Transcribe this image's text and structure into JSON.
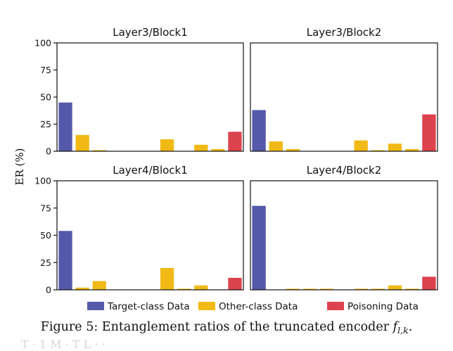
{
  "chart_data": {
    "type": "bar",
    "ylabel": "ER (%)",
    "ylim": [
      0,
      100
    ],
    "yticks": [
      "0",
      "25",
      "50",
      "75",
      "100"
    ],
    "grid": false,
    "legend_position": "bottom",
    "series": [
      {
        "name": "Target-class Data",
        "color": "#5559a9"
      },
      {
        "name": "Other-class Data",
        "color": "#f1b915"
      },
      {
        "name": "Poisoning Data",
        "color": "#dd434d"
      }
    ],
    "panels": [
      {
        "title": "Layer3/Block1",
        "values": [
          45,
          15,
          1,
          0,
          0,
          0,
          11,
          0,
          6,
          2,
          18
        ],
        "series_index": [
          0,
          1,
          1,
          1,
          1,
          1,
          1,
          1,
          1,
          1,
          2
        ]
      },
      {
        "title": "Layer3/Block2",
        "values": [
          38,
          9,
          2,
          0,
          0,
          0,
          10,
          1,
          7,
          2,
          34
        ],
        "series_index": [
          0,
          1,
          1,
          1,
          1,
          1,
          1,
          1,
          1,
          1,
          2
        ]
      },
      {
        "title": "Layer4/Block1",
        "values": [
          54,
          2,
          8,
          0,
          0,
          0,
          20,
          1,
          4,
          0,
          11
        ],
        "series_index": [
          0,
          1,
          1,
          1,
          1,
          1,
          1,
          1,
          1,
          1,
          2
        ]
      },
      {
        "title": "Layer4/Block2",
        "values": [
          77,
          0,
          1,
          1,
          1,
          0,
          1,
          1,
          4,
          1,
          12
        ],
        "series_index": [
          0,
          1,
          1,
          1,
          1,
          1,
          1,
          1,
          1,
          1,
          2
        ]
      }
    ]
  },
  "caption": {
    "main": "Figure 5: Entanglement ratios of the truncated encoder ",
    "math": "f",
    "sub": "l,k",
    "end": "."
  },
  "ghost_text": "T   ·   1 M   · T      L         ·     ·  "
}
